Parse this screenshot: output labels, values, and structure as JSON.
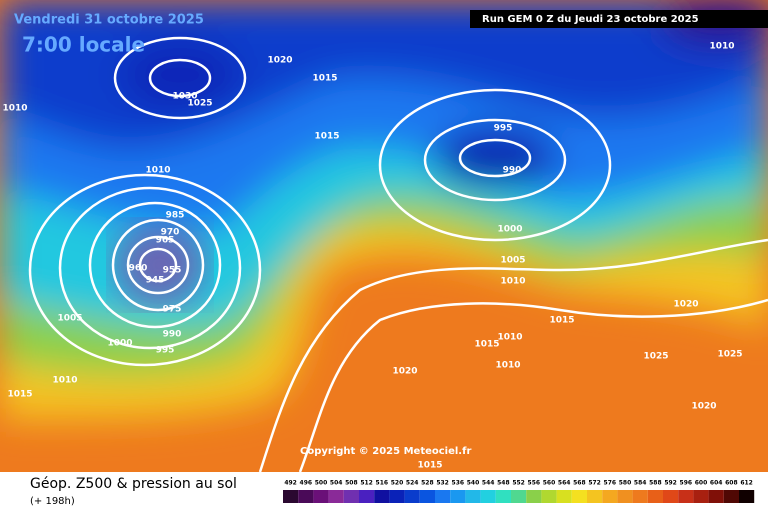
{
  "header": {
    "valid_date": "Vendredi 31 octobre 2025",
    "local_time": "7:00 locale",
    "run": "Run GEM 0 Z du Jeudi 23 octobre 2025"
  },
  "isobar_labels": [
    "1020",
    "1015",
    "1030",
    "1025",
    "1010",
    "1015",
    "995",
    "990",
    "1010",
    "1010",
    "985",
    "1000",
    "1005",
    "1010",
    "975",
    "990",
    "995",
    "1000",
    "1005",
    "1010",
    "1015",
    "1015",
    "1010",
    "1010",
    "1015",
    "1020",
    "1025",
    "1025",
    "1020",
    "1020",
    "1015",
    "955",
    "960",
    "945",
    "970",
    "965"
  ],
  "copyright": "Copyright © 2025 Meteociel.fr",
  "footer": {
    "title": "Géop. Z500 & pression au sol",
    "lead": "(+ 198h)"
  },
  "scale_labels": [
    "492",
    "496",
    "500",
    "504",
    "508",
    "512",
    "516",
    "520",
    "524",
    "528",
    "532",
    "536",
    "540",
    "544",
    "548",
    "552",
    "556",
    "560",
    "564",
    "568",
    "572",
    "576",
    "580",
    "584",
    "588",
    "592",
    "596",
    "600",
    "604",
    "608",
    "612"
  ]
}
